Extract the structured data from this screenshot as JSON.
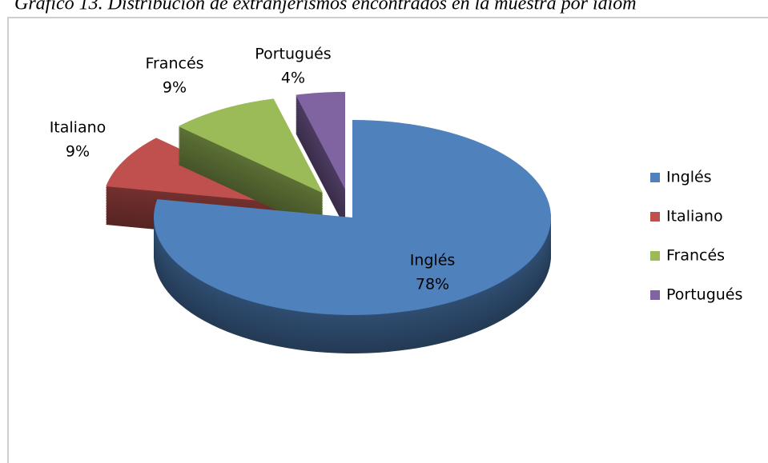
{
  "chart_data": {
    "type": "pie",
    "title": "Gráfico 13. Distribución de extranjerismos encontrados en la muestra por idiom",
    "categories": [
      "Inglés",
      "Italiano",
      "Francés",
      "Portugués"
    ],
    "values": [
      78,
      9,
      9,
      4
    ],
    "value_labels": [
      "78%",
      "9%",
      "9%",
      "4%"
    ],
    "colors": [
      "#4f81bd",
      "#c0504d",
      "#9bbb59",
      "#8064a2"
    ],
    "legend": "right"
  }
}
